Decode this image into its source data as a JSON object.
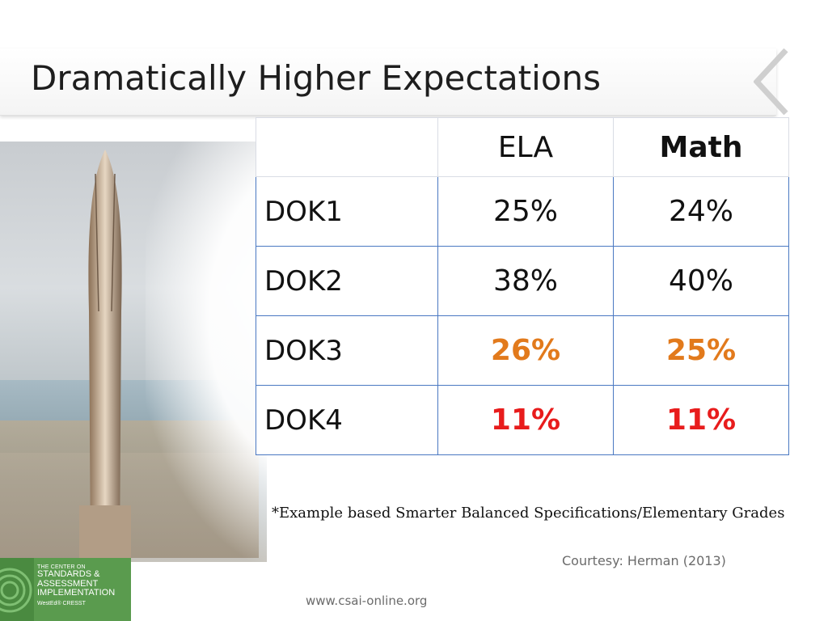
{
  "slide": {
    "title": "Dramatically Higher Expectations"
  },
  "table": {
    "columns": [
      "",
      "ELA",
      "Math"
    ],
    "rows": [
      {
        "label": "DOK1",
        "ela": "25%",
        "math": "24%"
      },
      {
        "label": "DOK2",
        "ela": "38%",
        "math": "40%"
      },
      {
        "label": "DOK3",
        "ela": "26%",
        "math": "25%"
      },
      {
        "label": "DOK4",
        "ela": "11%",
        "math": "11%"
      }
    ]
  },
  "footnote": "*Example based Smarter Balanced Specifications/Elementary Grades",
  "courtesy": "Courtesy: Herman (2013)",
  "url": "www.csai-online.org",
  "logo": {
    "line1": "THE CENTER ON",
    "line2": "STANDARDS &",
    "line3": "ASSESSMENT",
    "line4": "IMPLEMENTATION",
    "partners": "WestEd®  CRESST"
  },
  "colors": {
    "accent_orange": "#e27a1c",
    "accent_red": "#e81c1c",
    "table_border": "#4a78c2",
    "logo_green": "#5a9b4e"
  }
}
